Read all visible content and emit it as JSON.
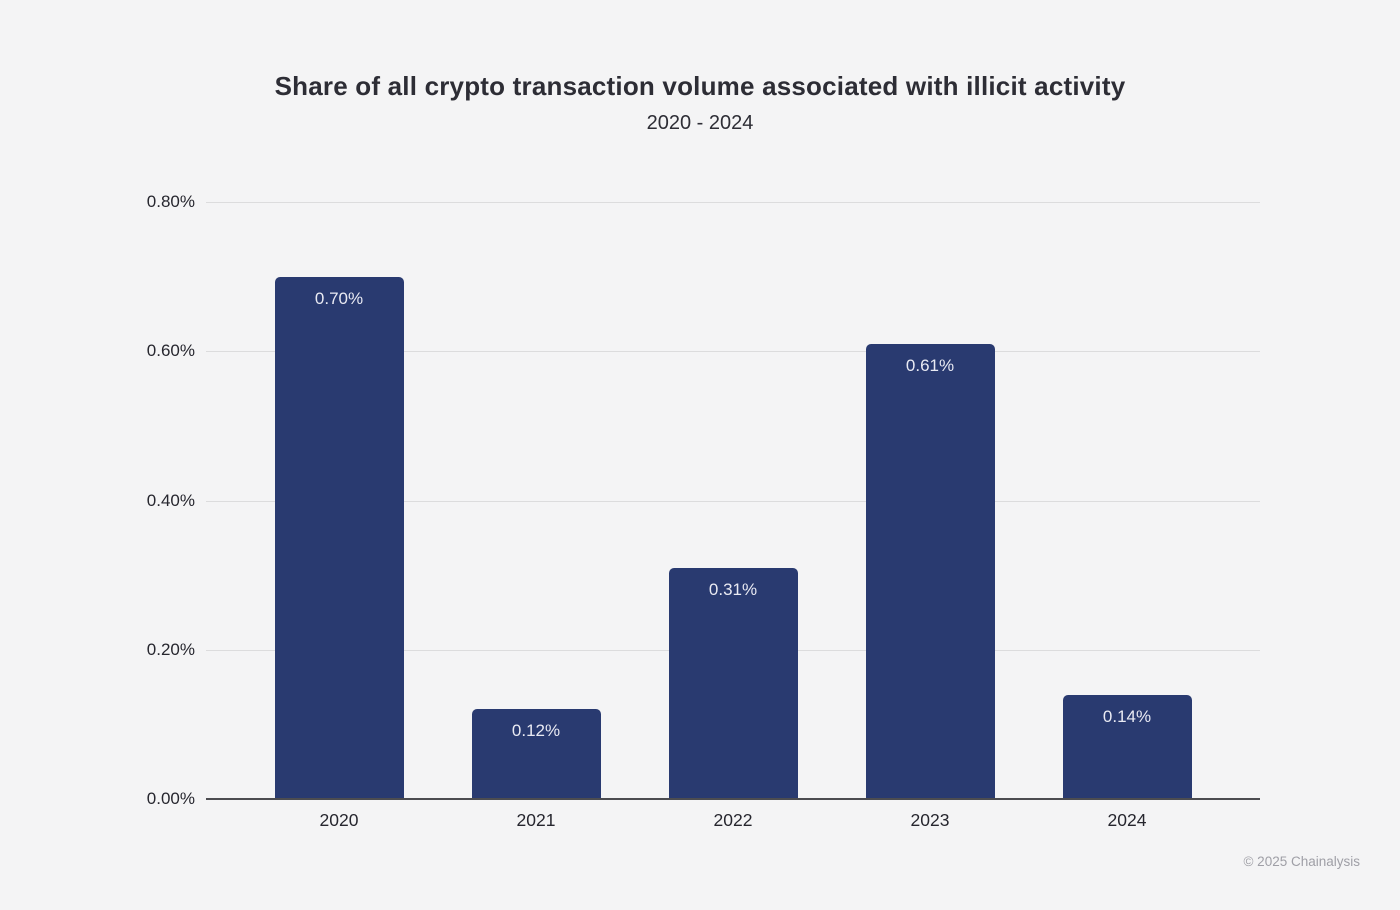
{
  "header": {
    "title": "Share of all crypto transaction volume associated with illicit activity",
    "subtitle": "2020 - 2024"
  },
  "footer": {
    "copyright": "© 2025 Chainalysis"
  },
  "chart_data": {
    "type": "bar",
    "title": "Share of all crypto transaction volume associated with illicit activity",
    "subtitle": "2020 - 2024",
    "categories": [
      "2020",
      "2021",
      "2022",
      "2023",
      "2024"
    ],
    "values": [
      0.7,
      0.12,
      0.31,
      0.61,
      0.14
    ],
    "value_labels": [
      "0.70%",
      "0.12%",
      "0.31%",
      "0.61%",
      "0.14%"
    ],
    "unit": "%",
    "xlabel": "",
    "ylabel": "",
    "ylim": [
      0,
      0.8
    ],
    "y_ticks": [
      0.0,
      0.2,
      0.4,
      0.6,
      0.8
    ],
    "y_tick_labels": [
      "0.00%",
      "0.20%",
      "0.40%",
      "0.60%",
      "0.80%"
    ],
    "grid": true,
    "legend": false,
    "colors": {
      "bar": "#293a70",
      "bar_value_label": "#e9eaf3",
      "background": "#f4f4f5",
      "gridline": "#dcdcdd",
      "axis_line": "#4c4c50",
      "axis_text": "#26262e",
      "title_text": "#2d2d35",
      "copyright_text": "#9f9fa6"
    }
  }
}
